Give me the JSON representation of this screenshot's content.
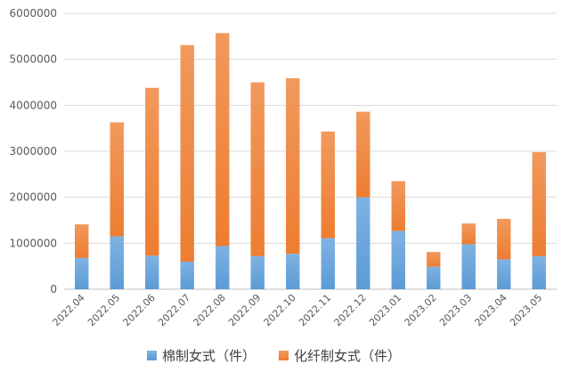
{
  "chart_data": {
    "type": "bar",
    "stacked": true,
    "categories": [
      "2022.04",
      "2022.05",
      "2022.06",
      "2022.07",
      "2022.08",
      "2022.09",
      "2022.10",
      "2022.11",
      "2022.12",
      "2023.01",
      "2023.02",
      "2023.03",
      "2023.04",
      "2023.05"
    ],
    "series": [
      {
        "name": "棉制女式（件）",
        "color": "#5b9bd5",
        "values": [
          680000,
          1150000,
          730000,
          600000,
          940000,
          720000,
          770000,
          1110000,
          2000000,
          1270000,
          490000,
          980000,
          650000,
          720000
        ]
      },
      {
        "name": "化纤制女式（件）",
        "color": "#ed7d31",
        "values": [
          730000,
          2480000,
          3650000,
          4710000,
          4630000,
          3780000,
          3820000,
          2320000,
          1860000,
          1080000,
          320000,
          450000,
          880000,
          2260000
        ]
      }
    ],
    "ylim": [
      0,
      6000000
    ],
    "yticks": [
      "0",
      "1000000",
      "2000000",
      "3000000",
      "4000000",
      "5000000",
      "6000000"
    ],
    "grid": true,
    "legend_position": "bottom"
  }
}
